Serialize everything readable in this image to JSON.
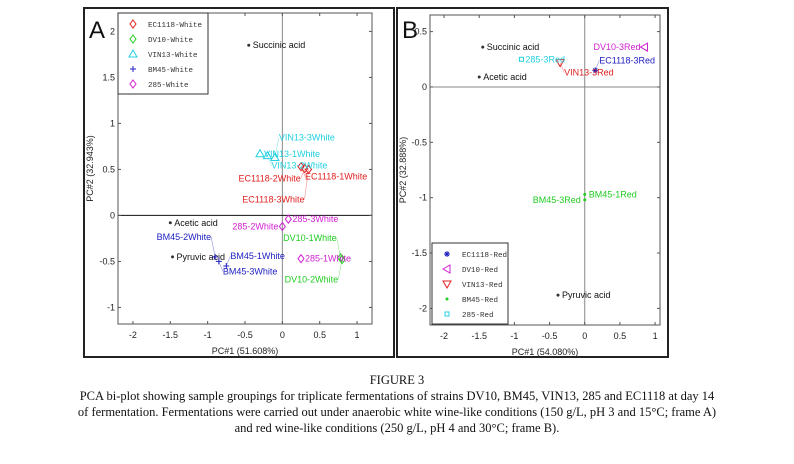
{
  "figure": {
    "label": "FIGURE 3",
    "caption_lines": [
      "PCA bi-plot showing sample groupings for triplicate fermentations of strains DV10, BM45, VIN13, 285 and EC1118 at day 14",
      "of fermentation. Fermentations were carried out under anaerobic white wine-like conditions (150 g/L, pH 3 and 15°C; frame A)",
      "and red wine-like conditions (250 g/L, pH 4 and 30°C; frame B)."
    ]
  },
  "chart_data": [
    {
      "type": "scatter",
      "panel": "A",
      "xlabel": "PC#1 (51.608%)",
      "ylabel": "PC#2 (32.943%)",
      "xlim": [
        -2.2,
        1.2
      ],
      "ylim": [
        -1.18,
        2.2
      ],
      "xticks": [
        -2,
        -1.5,
        -1,
        -0.5,
        0,
        0.5,
        1
      ],
      "yticks": [
        -1,
        -0.5,
        0,
        0.5,
        1,
        1.5,
        2
      ],
      "legend_position": "top-left",
      "legend": [
        {
          "name": "EC1118-White",
          "color": "#e02020",
          "marker": "diamond"
        },
        {
          "name": "DV10-White",
          "color": "#22cc22",
          "marker": "diamond"
        },
        {
          "name": "VIN13-White",
          "color": "#22d0e0",
          "marker": "triangle"
        },
        {
          "name": "BM45-White",
          "color": "#2020c0",
          "marker": "plus"
        },
        {
          "name": "285-White",
          "color": "#d020d0",
          "marker": "diamond"
        }
      ],
      "variables": [
        {
          "label": "Succinic acid",
          "x": -0.45,
          "y": 1.85
        },
        {
          "label": "Acetic acid",
          "x": -1.5,
          "y": -0.08
        },
        {
          "label": "Pyruvic acid",
          "x": -1.47,
          "y": -0.45
        }
      ],
      "samples": [
        {
          "label": "VIN13-1White",
          "x": -0.3,
          "y": 0.67,
          "series": 2
        },
        {
          "label": "VIN13-2White",
          "x": -0.2,
          "y": 0.65,
          "series": 2
        },
        {
          "label": "VIN13-3White",
          "x": -0.1,
          "y": 0.63,
          "series": 2
        },
        {
          "label": "EC1118-1White",
          "x": 0.25,
          "y": 0.53,
          "series": 0
        },
        {
          "label": "EC1118-2White",
          "x": 0.3,
          "y": 0.51,
          "series": 0
        },
        {
          "label": "EC1118-3White",
          "x": 0.35,
          "y": 0.5,
          "series": 0
        },
        {
          "label": "285-3White",
          "x": 0.08,
          "y": -0.04,
          "series": 4
        },
        {
          "label": "285-2White",
          "x": 0.0,
          "y": -0.12,
          "series": 4
        },
        {
          "label": "285-1White",
          "x": 0.25,
          "y": -0.47,
          "series": 4
        },
        {
          "label": "DV10-1White",
          "x": 0.78,
          "y": -0.46,
          "series": 1
        },
        {
          "label": "DV10-2White",
          "x": 0.8,
          "y": -0.48,
          "series": 1
        },
        {
          "label": "BM45-2White",
          "x": -0.9,
          "y": -0.45,
          "series": 3
        },
        {
          "label": "BM45-3White",
          "x": -0.85,
          "y": -0.5,
          "series": 3
        },
        {
          "label": "BM45-1White",
          "x": -0.75,
          "y": -0.55,
          "series": 3
        }
      ]
    },
    {
      "type": "scatter",
      "panel": "B",
      "xlabel": "PC#1 (54.080%)",
      "ylabel": "PC#2 (32.888%)",
      "xlim": [
        -2.2,
        1.07
      ],
      "ylim": [
        -2.15,
        0.65
      ],
      "xticks": [
        -2,
        -1.5,
        -1,
        -0.5,
        0,
        0.5,
        1
      ],
      "yticks": [
        -2,
        -1.5,
        -1,
        -0.5,
        0,
        0.5
      ],
      "legend_position": "bottom-left",
      "legend": [
        {
          "name": "EC1118-Red",
          "color": "#2020c0",
          "marker": "star"
        },
        {
          "name": "DV10-Red",
          "color": "#d020d0",
          "marker": "triangle-left"
        },
        {
          "name": "VIN13-Red",
          "color": "#e02020",
          "marker": "triangle-down"
        },
        {
          "name": "BM45-Red",
          "color": "#22cc22",
          "marker": "dot"
        },
        {
          "name": "285-Red",
          "color": "#22d0e0",
          "marker": "square"
        }
      ],
      "variables": [
        {
          "label": "Succinic acid",
          "x": -1.45,
          "y": 0.36
        },
        {
          "label": "Acetic acid",
          "x": -1.5,
          "y": 0.09
        },
        {
          "label": "Pyruvic acid",
          "x": -0.38,
          "y": -1.88
        }
      ],
      "samples": [
        {
          "label": "285-3Red",
          "x": -0.9,
          "y": 0.25,
          "series": 4
        },
        {
          "label": "VIN13-3Red",
          "x": -0.35,
          "y": 0.22,
          "series": 2
        },
        {
          "label": "EC1118-3Red",
          "x": 0.15,
          "y": 0.15,
          "series": 0
        },
        {
          "label": "DV10-3Red",
          "x": 0.85,
          "y": 0.36,
          "series": 1
        },
        {
          "label": "BM45-1Red",
          "x": 0.0,
          "y": -0.97,
          "series": 3
        },
        {
          "label": "BM45-3Red",
          "x": 0.0,
          "y": -1.02,
          "series": 3
        }
      ]
    }
  ]
}
